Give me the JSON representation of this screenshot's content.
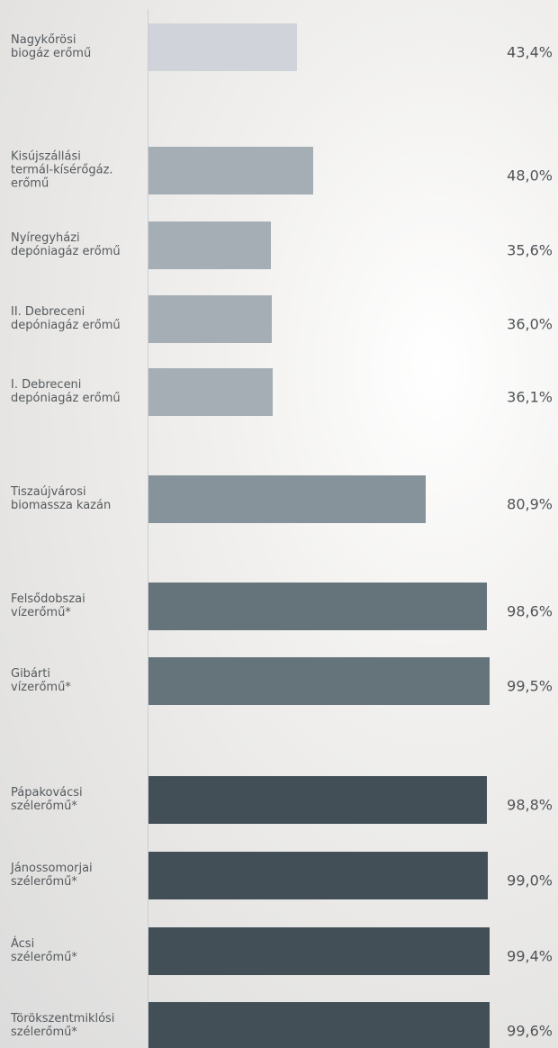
{
  "chart_data": {
    "type": "bar",
    "orientation": "horizontal",
    "categories": [
      "Nagykőrösi\nbiogáz erőmű",
      "Kisújszállási\ntermál-kísérőgáz.\nerőmű",
      "Nyíregyházi\ndepóniagáz erőmű",
      "II. Debreceni\ndepóniagáz erőmű",
      "I. Debreceni\ndepóniagáz erőmű",
      "Tiszaújvárosi\nbiomassza kazán",
      "Felsődobszai\nvízerőmű*",
      "Gibárti\nvízerőmű*",
      "Pápakovácsi\nszélerőmű*",
      "Jánossomorjai\nszélerőmű*",
      "Ácsi\nszélerőmű*",
      "Törökszentmiklósi\nszélerőmű*"
    ],
    "values": [
      43.4,
      48.0,
      35.6,
      36.0,
      36.1,
      80.9,
      98.6,
      99.5,
      98.8,
      99.0,
      99.4,
      99.6
    ],
    "value_labels": [
      "43,4%",
      "48,0%",
      "35,6%",
      "36,0%",
      "36,1%",
      "80,9%",
      "98,6%",
      "99,5%",
      "98,8%",
      "99,0%",
      "99,4%",
      "99,6%"
    ],
    "colors": [
      "#d0d4da",
      "#a5aeb4",
      "#a5aeb4",
      "#a5aeb4",
      "#a5aeb4",
      "#86939a",
      "#65737a",
      "#65737a",
      "#434f57",
      "#434f57",
      "#434f57",
      "#434f57"
    ],
    "xlim": [
      0,
      100
    ]
  }
}
